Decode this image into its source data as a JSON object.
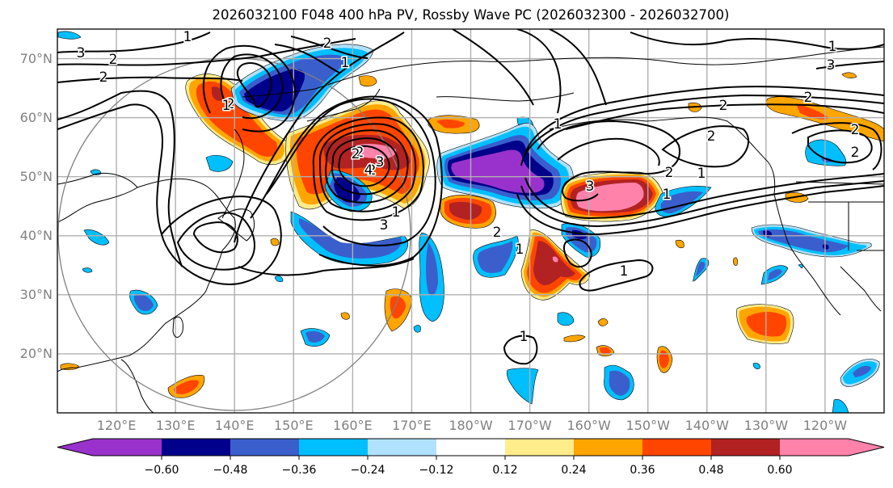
{
  "title": "2026032100 F048 400 hPa PV, Rossby Wave PC (2026032300 - 2026032700)",
  "map": {
    "projection": "PlateCarree",
    "extent_lon": [
      110,
      250
    ],
    "extent_lat": [
      10,
      75
    ],
    "lat_labels": [
      "70°N",
      "60°N",
      "50°N",
      "40°N",
      "30°N",
      "20°N"
    ],
    "lat_values": [
      70,
      60,
      50,
      40,
      30,
      20
    ],
    "lon_labels": [
      "120°E",
      "130°E",
      "140°E",
      "150°E",
      "160°E",
      "170°E",
      "180°W",
      "170°W",
      "160°W",
      "150°W",
      "140°W",
      "130°W",
      "120°W"
    ],
    "lon_values": [
      120,
      130,
      140,
      150,
      160,
      170,
      180,
      190,
      200,
      210,
      220,
      230,
      240
    ],
    "contour_labels": [
      "3",
      "2",
      "2",
      "1",
      "1",
      "2",
      "1",
      "3",
      "2",
      "2",
      "1",
      "2",
      "2",
      "1",
      "3",
      "1",
      "2",
      "2",
      "2",
      "1",
      "1",
      "3",
      "2",
      "1",
      "2",
      "2",
      "4",
      "3",
      "2",
      "1",
      "1"
    ],
    "gridline_color": "#b0b0b0",
    "circle_color": "#808080"
  },
  "colorbar": {
    "ticks": [
      "−0.60",
      "−0.48",
      "−0.36",
      "−0.24",
      "−0.12",
      "0.12",
      "0.24",
      "0.36",
      "0.48",
      "0.60"
    ],
    "bounds": [
      -0.72,
      -0.6,
      -0.48,
      -0.36,
      -0.24,
      -0.12,
      0.12,
      0.24,
      0.36,
      0.48,
      0.6,
      0.72
    ],
    "colors": [
      "#9932cc",
      "#00008b",
      "#3a5fcd",
      "#00bfff",
      "#b0e2ff",
      "#ffffff",
      "#ffec8b",
      "#ffa500",
      "#ff4500",
      "#b22222",
      "#ff82ab"
    ],
    "extend": "both"
  }
}
